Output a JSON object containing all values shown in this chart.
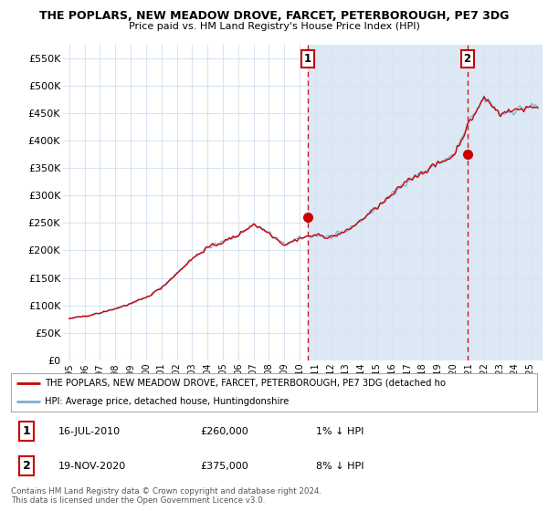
{
  "title": "THE POPLARS, NEW MEADOW DROVE, FARCET, PETERBOROUGH, PE7 3DG",
  "subtitle": "Price paid vs. HM Land Registry's House Price Index (HPI)",
  "ylabel_ticks": [
    "£0",
    "£50K",
    "£100K",
    "£150K",
    "£200K",
    "£250K",
    "£300K",
    "£350K",
    "£400K",
    "£450K",
    "£500K",
    "£550K"
  ],
  "ytick_values": [
    0,
    50000,
    100000,
    150000,
    200000,
    250000,
    300000,
    350000,
    400000,
    450000,
    500000,
    550000
  ],
  "ylim": [
    0,
    575000
  ],
  "background_color": "#ffffff",
  "plot_bg_color": "#ffffff",
  "grid_color": "#d8e4f0",
  "shade_color": "#dce9f5",
  "hpi_color": "#7aaed6",
  "price_color": "#cc0000",
  "legend_label_price": "THE POPLARS, NEW MEADOW DROVE, FARCET, PETERBOROUGH, PE7 3DG (detached ho",
  "legend_label_hpi": "HPI: Average price, detached house, Huntingdonshire",
  "sale1_date": "16-JUL-2010",
  "sale1_price": 260000,
  "sale1_note": "1% ↓ HPI",
  "sale2_date": "19-NOV-2020",
  "sale2_price": 375000,
  "sale2_note": "8% ↓ HPI",
  "footer": "Contains HM Land Registry data © Crown copyright and database right 2024.\nThis data is licensed under the Open Government Licence v3.0.",
  "sale1_x": 2010.54,
  "sale2_x": 2020.9,
  "xlim_left": 1994.6,
  "xlim_right": 2025.8
}
